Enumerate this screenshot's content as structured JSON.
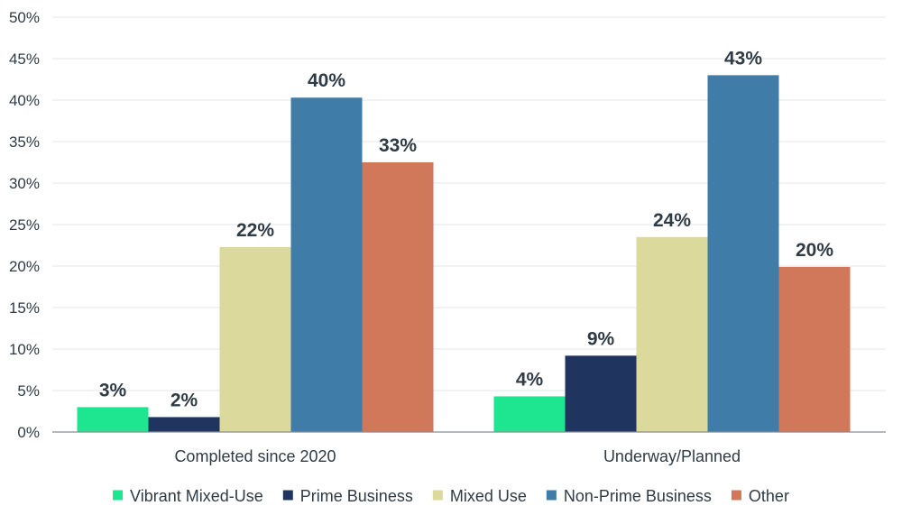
{
  "chart_data": {
    "type": "bar",
    "categories": [
      "Completed since 2020",
      "Underway/Planned"
    ],
    "series": [
      {
        "name": "Vibrant Mixed-Use",
        "color": "#1ee590",
        "values": [
          3,
          4.3
        ],
        "labels": [
          "3%",
          "4%"
        ]
      },
      {
        "name": "Prime Business",
        "color": "#1f3560",
        "values": [
          1.8,
          9.2
        ],
        "labels": [
          "2%",
          "9%"
        ]
      },
      {
        "name": "Mixed Use",
        "color": "#dbd99b",
        "values": [
          22.3,
          23.5
        ],
        "labels": [
          "22%",
          "24%"
        ]
      },
      {
        "name": "Non-Prime Business",
        "color": "#3f7ca8",
        "values": [
          40.3,
          43
        ],
        "labels": [
          "40%",
          "43%"
        ]
      },
      {
        "name": "Other",
        "color": "#d1785a",
        "values": [
          32.5,
          19.9
        ],
        "labels": [
          "33%",
          "20%"
        ]
      }
    ],
    "ylim": [
      0,
      50
    ],
    "yticks": [
      0,
      5,
      10,
      15,
      20,
      25,
      30,
      35,
      40,
      45,
      50
    ],
    "ytick_labels": [
      "0%",
      "5%",
      "10%",
      "15%",
      "20%",
      "25%",
      "30%",
      "35%",
      "40%",
      "45%",
      "50%"
    ],
    "grid": true,
    "legend_position": "bottom"
  }
}
